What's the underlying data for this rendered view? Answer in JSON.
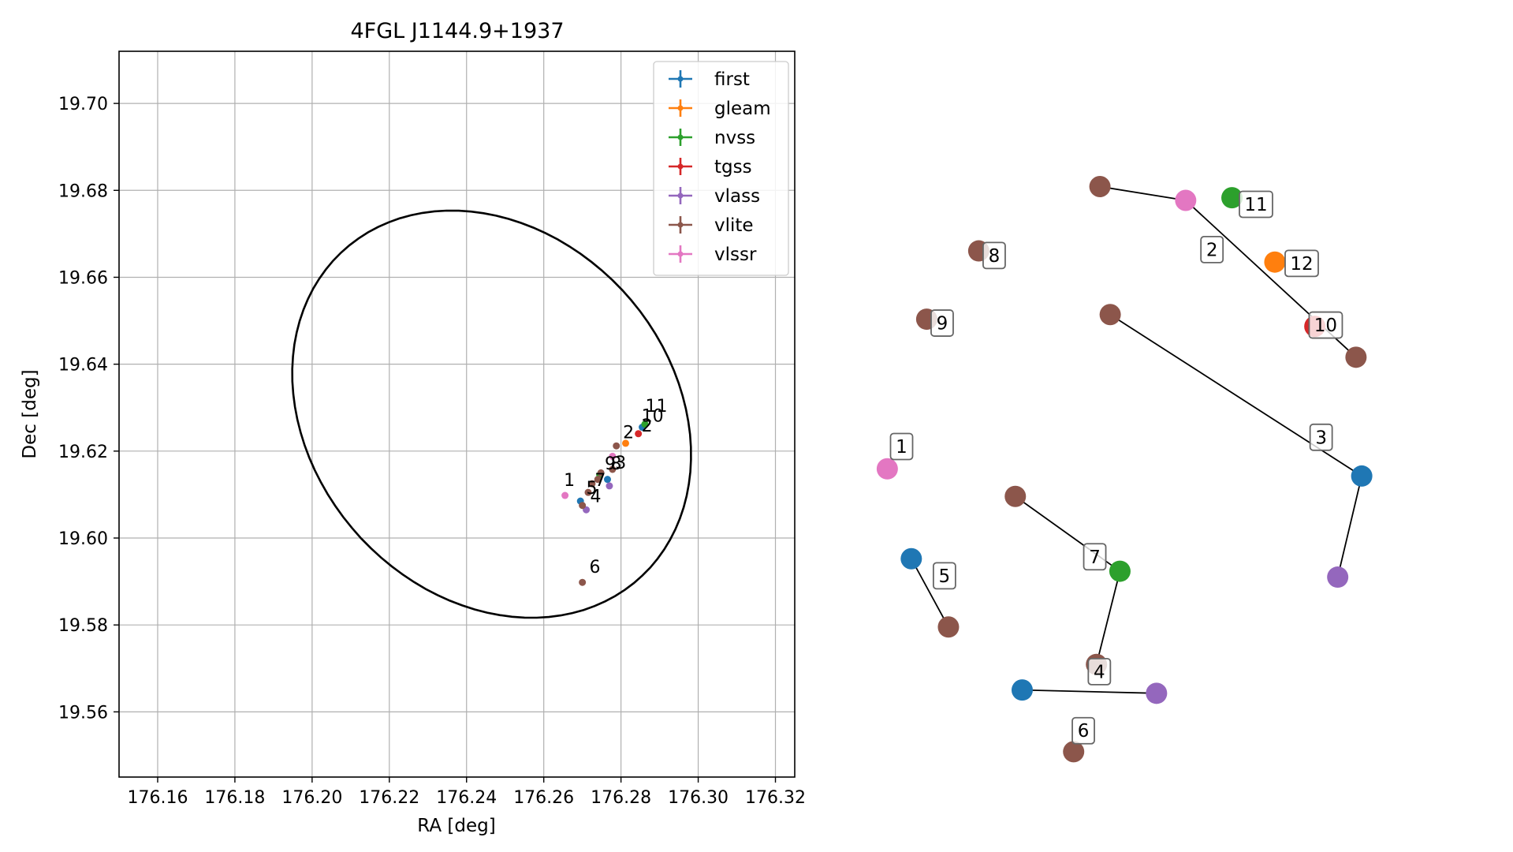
{
  "chart_data": [
    {
      "type": "scatter",
      "title": "4FGL J1144.9+1937",
      "xlabel": "RA [deg]",
      "ylabel": "Dec [deg]",
      "xlim": [
        176.15,
        176.325
      ],
      "ylim": [
        19.545,
        19.712
      ],
      "xticks": [
        176.16,
        176.18,
        176.2,
        176.22,
        176.24,
        176.26,
        176.28,
        176.3,
        176.32
      ],
      "xtick_labels": [
        "176.16",
        "176.18",
        "176.20",
        "176.22",
        "176.24",
        "176.26",
        "176.28",
        "176.30",
        "176.32"
      ],
      "yticks": [
        19.56,
        19.58,
        19.6,
        19.62,
        19.64,
        19.66,
        19.68,
        19.7
      ],
      "ytick_labels": [
        "19.56",
        "19.58",
        "19.60",
        "19.62",
        "19.64",
        "19.66",
        "19.68",
        "19.70"
      ],
      "grid": true,
      "legend_position": "top-right",
      "error_ellipse": {
        "center": [
          176.2465,
          19.6285
        ],
        "semi_major": 0.0545,
        "semi_minor": 0.0435,
        "angle_deg": -32,
        "color": "#000000"
      },
      "series": [
        {
          "name": "first",
          "color": "#1f77b4",
          "points": [
            [
              176.2695,
              19.6085
            ],
            [
              176.2765,
              19.6135
            ],
            [
              176.2855,
              19.6255
            ]
          ]
        },
        {
          "name": "gleam",
          "color": "#ff7f0e",
          "points": [
            [
              176.2812,
              19.6218
            ]
          ]
        },
        {
          "name": "nvss",
          "color": "#2ca02c",
          "points": [
            [
              176.2745,
              19.6145
            ],
            [
              176.2862,
              19.6262
            ]
          ]
        },
        {
          "name": "tgss",
          "color": "#d62728",
          "points": [
            [
              176.2845,
              19.624
            ]
          ]
        },
        {
          "name": "vlass",
          "color": "#9467bd",
          "points": [
            [
              176.271,
              19.6065
            ],
            [
              176.277,
              19.612
            ]
          ]
        },
        {
          "name": "vlite",
          "color": "#8c564b",
          "points": [
            [
              176.27,
              19.6075
            ],
            [
              176.2715,
              19.6105
            ],
            [
              176.2725,
              19.6125
            ],
            [
              176.274,
              19.6135
            ],
            [
              176.2748,
              19.615
            ],
            [
              176.2778,
              19.6158
            ],
            [
              176.2788,
              19.6212
            ],
            [
              176.27,
              19.5898
            ]
          ]
        },
        {
          "name": "vlssr",
          "color": "#e377c2",
          "points": [
            [
              176.2655,
              19.6098
            ],
            [
              176.2778,
              19.6188
            ]
          ]
        }
      ],
      "annotations": [
        {
          "text": "1",
          "x": 176.2652,
          "y": 19.612
        },
        {
          "text": "2",
          "x": 176.2805,
          "y": 19.623
        },
        {
          "text": "2",
          "x": 176.2853,
          "y": 19.6245
        },
        {
          "text": "3",
          "x": 176.2785,
          "y": 19.616
        },
        {
          "text": "4",
          "x": 176.272,
          "y": 19.6083
        },
        {
          "text": "5",
          "x": 176.271,
          "y": 19.6102
        },
        {
          "text": "6",
          "x": 176.2718,
          "y": 19.592
        },
        {
          "text": "7",
          "x": 176.2732,
          "y": 19.612
        },
        {
          "text": "8",
          "x": 176.2773,
          "y": 19.6158
        },
        {
          "text": "9",
          "x": 176.2758,
          "y": 19.6158
        },
        {
          "text": "10",
          "x": 176.2853,
          "y": 19.6268
        },
        {
          "text": "11",
          "x": 176.2863,
          "y": 19.629
        }
      ]
    },
    {
      "type": "network",
      "nodes": [
        {
          "label": "1",
          "color": "#e377c2",
          "x": 0.035,
          "y": 0.546
        },
        {
          "label": "2",
          "color": "#e377c2",
          "x": 0.557,
          "y": 0.137
        },
        {
          "label": "2",
          "color": "#8c564b",
          "x": 0.855,
          "y": 0.376
        },
        {
          "label": "",
          "color": "#8c564b",
          "x": 0.407,
          "y": 0.116
        },
        {
          "label": "11",
          "color": "#2ca02c",
          "x": 0.638,
          "y": 0.133
        },
        {
          "label": "12",
          "color": "#ff7f0e",
          "x": 0.713,
          "y": 0.231
        },
        {
          "label": "10",
          "color": "#d62728",
          "x": 0.783,
          "y": 0.329
        },
        {
          "label": "8",
          "color": "#8c564b",
          "x": 0.195,
          "y": 0.214
        },
        {
          "label": "9",
          "color": "#8c564b",
          "x": 0.104,
          "y": 0.318
        },
        {
          "label": "3",
          "color": "#8c564b",
          "x": 0.425,
          "y": 0.311
        },
        {
          "label": "3",
          "color": "#1f77b4",
          "x": 0.865,
          "y": 0.557
        },
        {
          "label": "",
          "color": "#9467bd",
          "x": 0.823,
          "y": 0.711
        },
        {
          "label": "7",
          "color": "#8c564b",
          "x": 0.259,
          "y": 0.588
        },
        {
          "label": "7",
          "color": "#2ca02c",
          "x": 0.442,
          "y": 0.702
        },
        {
          "label": "4",
          "color": "#8c564b",
          "x": 0.401,
          "y": 0.844
        },
        {
          "label": "5",
          "color": "#1f77b4",
          "x": 0.077,
          "y": 0.683
        },
        {
          "label": "5",
          "color": "#8c564b",
          "x": 0.142,
          "y": 0.787
        },
        {
          "label": "",
          "color": "#1f77b4",
          "x": 0.271,
          "y": 0.883
        },
        {
          "label": "",
          "color": "#9467bd",
          "x": 0.506,
          "y": 0.888
        },
        {
          "label": "6",
          "color": "#8c564b",
          "x": 0.361,
          "y": 0.977
        }
      ],
      "edges": [
        [
          3,
          1
        ],
        [
          1,
          2
        ],
        [
          9,
          10
        ],
        [
          10,
          11
        ],
        [
          12,
          13
        ],
        [
          13,
          14
        ],
        [
          15,
          16
        ],
        [
          17,
          18
        ]
      ],
      "tag_labels": [
        {
          "text": "1",
          "x": 0.06,
          "y": 0.512
        },
        {
          "text": "2",
          "x": 0.603,
          "y": 0.212
        },
        {
          "text": "3",
          "x": 0.794,
          "y": 0.498
        },
        {
          "text": "4",
          "x": 0.406,
          "y": 0.855
        },
        {
          "text": "5",
          "x": 0.135,
          "y": 0.709
        },
        {
          "text": "6",
          "x": 0.378,
          "y": 0.945
        },
        {
          "text": "7",
          "x": 0.398,
          "y": 0.68
        },
        {
          "text": "8",
          "x": 0.222,
          "y": 0.221
        },
        {
          "text": "9",
          "x": 0.131,
          "y": 0.324
        },
        {
          "text": "10",
          "x": 0.802,
          "y": 0.327
        },
        {
          "text": "11",
          "x": 0.68,
          "y": 0.143
        },
        {
          "text": "12",
          "x": 0.76,
          "y": 0.233
        }
      ]
    }
  ]
}
